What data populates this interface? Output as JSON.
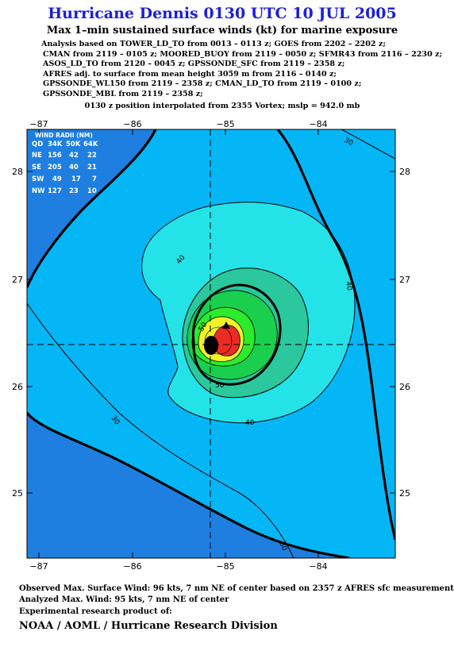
{
  "header": {
    "title": "Hurricane Dennis 0130 UTC 10 JUL 2005",
    "subtitle": "Max 1–min sustained surface winds (kt) for marine exposure",
    "analysis_lines": [
      "Analysis based on  TOWER_LD_TO from 0013 – 0113 z;  GOES from 2202 – 2202 z;",
      "CMAN from 2119 – 0105 z;  MOORED_BUOY from 2119 – 0050 z;  SFMR43 from 2116 – 2230 z;",
      "ASOS_LD_TO from 2120 – 0045 z;  GPSSONDE_SFC from 2119 – 2358 z;",
      "AFRES adj. to surface from mean height 3059 m from 2116 – 0140 z;",
      "GPSSONDE_WL150 from 2119 – 2358 z;  CMAN_LD_TO from 2119 – 0100 z;",
      "GPSSONDE_MBL from 2119 – 2358 z;"
    ],
    "position_note": "0130 z position interpolated from 2355 Vortex; mslp = 942.0 mb"
  },
  "map": {
    "lon_ticks": [
      "−87",
      "−86",
      "−85",
      "−84"
    ],
    "lat_ticks": [
      "28",
      "27",
      "26",
      "25"
    ],
    "center": {
      "lon": -85.0,
      "lat": 26.38
    },
    "contour_labels": [
      "30",
      "40",
      "40",
      "40",
      "50",
      "50",
      "30",
      "30"
    ],
    "wind_radii": {
      "title": "WIND RADII (NM)",
      "header": [
        "QD",
        "34K",
        "50K",
        "64K"
      ],
      "rows": [
        [
          "NE",
          "156",
          "42",
          "22"
        ],
        [
          "SE",
          "205",
          "40",
          "21"
        ],
        [
          "SW",
          "49",
          "17",
          "7"
        ],
        [
          "NW",
          "127",
          "23",
          "10"
        ]
      ]
    },
    "colors": {
      "background": "#1e7fe0",
      "band_30_40": "#05b6f6",
      "band_40_50": "#23e3e9",
      "band_50_60": "#2ac89c",
      "band_60_70": "#19cf4d",
      "band_70_80": "#2bec2c",
      "band_80_90": "#f3f22a",
      "band_90_plus": "#ec2b24"
    }
  },
  "footer": {
    "observed": "Observed Max. Surface Wind: 96 kts, 7 nm NE of center based on 2357 z AFRES sfc measurement",
    "analyzed": "Analyzed Max. Wind: 95 kts, 7 nm NE of center",
    "experimental": "Experimental research product of:",
    "org": "NOAA / AOML / Hurricane Research Division"
  }
}
